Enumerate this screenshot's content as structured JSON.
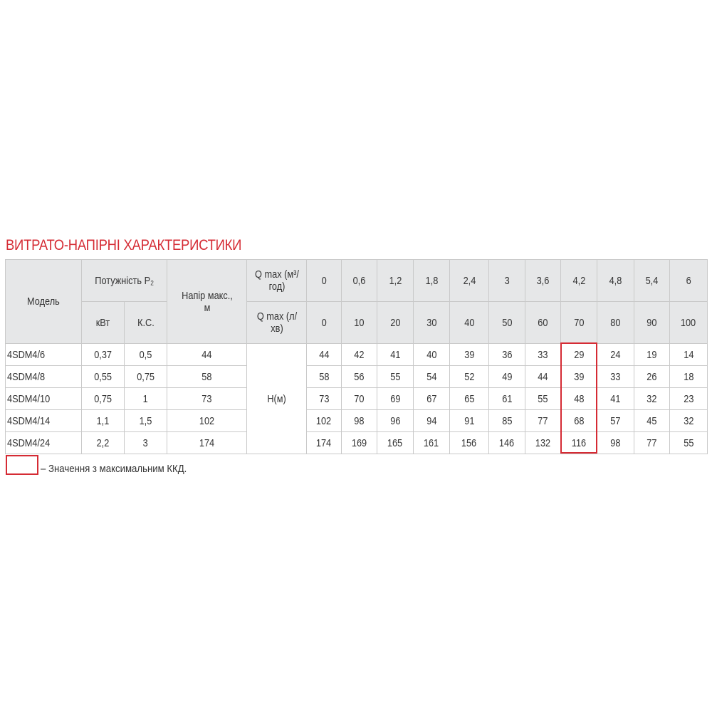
{
  "title": "ВИТРАТО-НАПІРНІ ХАРАКТЕРИСТИКИ",
  "header": {
    "model": "Модель",
    "power": "Потужність P₂",
    "kw": "кВт",
    "hp": "К.С.",
    "head_max": "Напір макс., м",
    "q_m3": "Q max (м³/год)",
    "q_lmin": "Q max (л/хв)",
    "flow_m3h": [
      "0",
      "0,6",
      "1,2",
      "1,8",
      "2,4",
      "3",
      "3,6",
      "4,2",
      "4,8",
      "5,4",
      "6"
    ],
    "flow_lmin": [
      "0",
      "10",
      "20",
      "30",
      "40",
      "50",
      "60",
      "70",
      "80",
      "90",
      "100"
    ]
  },
  "h_label": "H(м)",
  "rows": [
    {
      "model": "4SDM4/6",
      "kw": "0,37",
      "hp": "0,5",
      "head_max": "44",
      "heads": [
        "44",
        "42",
        "41",
        "40",
        "39",
        "36",
        "33",
        "29",
        "24",
        "19",
        "14"
      ]
    },
    {
      "model": "4SDM4/8",
      "kw": "0,55",
      "hp": "0,75",
      "head_max": "58",
      "heads": [
        "58",
        "56",
        "55",
        "54",
        "52",
        "49",
        "44",
        "39",
        "33",
        "26",
        "18"
      ]
    },
    {
      "model": "4SDM4/10",
      "kw": "0,75",
      "hp": "1",
      "head_max": "73",
      "heads": [
        "73",
        "70",
        "69",
        "67",
        "65",
        "61",
        "55",
        "48",
        "41",
        "32",
        "23"
      ]
    },
    {
      "model": "4SDM4/14",
      "kw": "1,1",
      "hp": "1,5",
      "head_max": "102",
      "heads": [
        "102",
        "98",
        "96",
        "94",
        "91",
        "85",
        "77",
        "68",
        "57",
        "45",
        "32"
      ]
    },
    {
      "model": "4SDM4/24",
      "kw": "2,2",
      "hp": "3",
      "head_max": "174",
      "heads": [
        "174",
        "169",
        "165",
        "161",
        "156",
        "146",
        "132",
        "116",
        "98",
        "77",
        "55"
      ]
    }
  ],
  "highlight": {
    "column": "4,2",
    "color": "#d52b34"
  },
  "legend": "– Значення з максимальним ККД.",
  "colors": {
    "accent": "#d52b34",
    "header_bg": "#e6e7e8",
    "border": "#c9c9c9"
  }
}
